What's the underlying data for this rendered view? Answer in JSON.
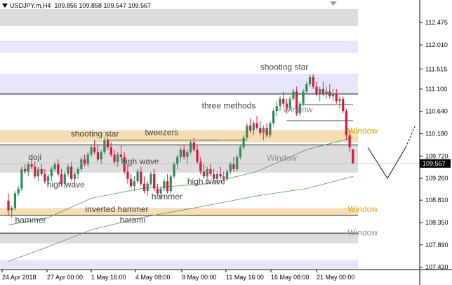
{
  "header": {
    "symbol": "USDJPY.m,H4",
    "ohlc": "109.856 109.858 109.547 109.567"
  },
  "current_price": "109.567",
  "colors": {
    "zone_gray": "#dcdcdc",
    "zone_lavender": "#e6e6fa",
    "zone_tan": "#f5deb3",
    "bull": "#2e8b57",
    "bear": "#dc143c",
    "ma": "#4d9a4d",
    "window_gray": "#8a9199",
    "window_tan": "#daa520"
  },
  "annotations": [
    {
      "text": "shooting star",
      "x": 19.0,
      "y": 111.5,
      "color": "#444444"
    },
    {
      "text": "three methods",
      "x": 14.6,
      "y": 110.7,
      "color": "#444444"
    },
    {
      "text": "Window",
      "x": 20.7,
      "y": 110.62,
      "color": "#8a9199"
    },
    {
      "text": "Window",
      "x": 25.6,
      "y": 110.18,
      "color": "#daa520"
    },
    {
      "text": "shooting star",
      "x": 4.7,
      "y": 110.12,
      "color": "#444444"
    },
    {
      "text": "tweezers",
      "x": 10.3,
      "y": 110.15,
      "color": "#444444"
    },
    {
      "text": "Window",
      "x": 19.5,
      "y": 109.62,
      "color": "#8a9199"
    },
    {
      "text": "doji",
      "x": 1.5,
      "y": 109.64,
      "color": "#444444"
    },
    {
      "text": "high wave",
      "x": 8.5,
      "y": 109.55,
      "color": "#444444"
    },
    {
      "text": "high wave",
      "x": 2.9,
      "y": 109.07,
      "color": "#444444"
    },
    {
      "text": "high wave",
      "x": 13.5,
      "y": 109.14,
      "color": "#444444"
    },
    {
      "text": "hammer",
      "x": 10.8,
      "y": 108.83,
      "color": "#444444"
    },
    {
      "text": "inverted hammer",
      "x": 5.8,
      "y": 108.57,
      "color": "#444444"
    },
    {
      "text": "hammer",
      "x": 0.5,
      "y": 108.34,
      "color": "#444444"
    },
    {
      "text": "harami",
      "x": 8.4,
      "y": 108.34,
      "color": "#444444"
    },
    {
      "text": "Window",
      "x": 25.6,
      "y": 108.57,
      "color": "#daa520"
    },
    {
      "text": "Window",
      "x": 25.6,
      "y": 108.08,
      "color": "#8a9199"
    }
  ],
  "chart_data": {
    "type": "candlestick",
    "title": "USDJPY.m,H4",
    "ylim": [
      107.38,
      112.85
    ],
    "y_ticks": [
      "112.475",
      "112.010",
      "111.515",
      "111.100",
      "110.640",
      "110.180",
      "109.720",
      "109.260",
      "108.810",
      "108.350",
      "107.890",
      "107.430"
    ],
    "x_ticks": [
      "24 Apr 2018",
      "27 Apr 00:00",
      "1 May 16:00",
      "4 May 08:00",
      "9 May 00:00",
      "11 May 16:00",
      "16 May 08:00",
      "21 May 00:00"
    ],
    "zones": [
      {
        "low": 112.4,
        "high": 112.75,
        "color": "gray"
      },
      {
        "low": 111.85,
        "high": 112.1,
        "color": "lavender"
      },
      {
        "low": 110.98,
        "high": 111.42,
        "color": "lavender"
      },
      {
        "low": 110.0,
        "high": 110.25,
        "color": "tan"
      },
      {
        "low": 109.38,
        "high": 109.95,
        "color": "gray"
      },
      {
        "low": 108.5,
        "high": 108.65,
        "color": "tan"
      },
      {
        "low": 107.92,
        "high": 108.13,
        "color": "gray"
      },
      {
        "low": 107.4,
        "high": 107.58,
        "color": "lavender"
      }
    ],
    "series": [
      {
        "name": "USDJPY.m",
        "values": [
          [
            108.8,
            108.95,
            108.5,
            108.6
          ],
          [
            108.6,
            108.7,
            108.45,
            108.65
          ],
          [
            108.65,
            109.0,
            108.6,
            108.95
          ],
          [
            108.95,
            109.1,
            108.9,
            109.05
          ],
          [
            109.05,
            109.5,
            109.0,
            109.45
          ],
          [
            109.45,
            109.55,
            109.35,
            109.4
          ],
          [
            109.4,
            109.6,
            109.3,
            109.55
          ],
          [
            109.55,
            109.65,
            109.45,
            109.5
          ],
          [
            109.5,
            109.6,
            109.25,
            109.3
          ],
          [
            109.3,
            109.5,
            109.2,
            109.45
          ],
          [
            109.45,
            109.55,
            109.3,
            109.35
          ],
          [
            109.35,
            109.45,
            109.15,
            109.2
          ],
          [
            109.2,
            109.35,
            109.1,
            109.3
          ],
          [
            109.3,
            109.5,
            109.2,
            109.45
          ],
          [
            109.45,
            109.6,
            109.4,
            109.55
          ],
          [
            109.55,
            109.65,
            109.3,
            109.35
          ],
          [
            109.35,
            109.45,
            109.1,
            109.15
          ],
          [
            109.15,
            109.4,
            109.05,
            109.35
          ],
          [
            109.35,
            109.55,
            109.3,
            109.5
          ],
          [
            109.5,
            109.6,
            109.2,
            109.25
          ],
          [
            109.25,
            109.4,
            109.15,
            109.35
          ],
          [
            109.35,
            109.5,
            109.25,
            109.45
          ],
          [
            109.45,
            109.7,
            109.4,
            109.65
          ],
          [
            109.65,
            109.75,
            109.5,
            109.55
          ],
          [
            109.55,
            109.8,
            109.5,
            109.75
          ],
          [
            109.75,
            109.95,
            109.7,
            109.9
          ],
          [
            109.9,
            110.05,
            109.75,
            109.8
          ],
          [
            109.8,
            109.95,
            109.6,
            109.65
          ],
          [
            109.65,
            109.85,
            109.55,
            109.8
          ],
          [
            109.8,
            110.1,
            109.75,
            110.05
          ],
          [
            110.05,
            110.1,
            109.85,
            109.9
          ],
          [
            109.9,
            110.0,
            109.7,
            109.75
          ],
          [
            109.75,
            109.85,
            109.55,
            109.6
          ],
          [
            109.6,
            109.8,
            109.5,
            109.75
          ],
          [
            109.75,
            109.95,
            109.65,
            109.7
          ],
          [
            109.7,
            109.8,
            109.35,
            109.4
          ],
          [
            109.4,
            109.55,
            109.15,
            109.25
          ],
          [
            109.25,
            109.35,
            109.05,
            109.1
          ],
          [
            109.1,
            109.3,
            109.0,
            109.2
          ],
          [
            109.2,
            109.45,
            109.15,
            109.4
          ],
          [
            109.4,
            109.5,
            109.1,
            109.15
          ],
          [
            109.15,
            109.3,
            108.95,
            109.0
          ],
          [
            109.0,
            109.2,
            108.9,
            109.15
          ],
          [
            109.15,
            109.4,
            109.1,
            109.35
          ],
          [
            109.35,
            109.45,
            109.0,
            109.05
          ],
          [
            109.05,
            109.15,
            108.9,
            108.95
          ],
          [
            108.95,
            109.1,
            108.85,
            109.05
          ],
          [
            109.05,
            109.25,
            109.0,
            109.2
          ],
          [
            109.2,
            109.35,
            108.95,
            109.0
          ],
          [
            109.0,
            109.35,
            108.95,
            109.3
          ],
          [
            109.3,
            109.6,
            109.25,
            109.55
          ],
          [
            109.55,
            109.75,
            109.45,
            109.7
          ],
          [
            109.7,
            109.9,
            109.6,
            109.85
          ],
          [
            109.85,
            109.95,
            109.65,
            109.7
          ],
          [
            109.7,
            109.85,
            109.55,
            109.8
          ],
          [
            109.8,
            110.05,
            109.75,
            110.0
          ],
          [
            110.0,
            110.1,
            109.8,
            109.85
          ],
          [
            109.85,
            109.95,
            109.55,
            109.6
          ],
          [
            109.6,
            109.7,
            109.35,
            109.4
          ],
          [
            109.4,
            109.55,
            109.25,
            109.3
          ],
          [
            109.3,
            109.5,
            109.2,
            109.45
          ],
          [
            109.45,
            109.55,
            109.3,
            109.35
          ],
          [
            109.35,
            109.45,
            109.2,
            109.25
          ],
          [
            109.25,
            109.4,
            109.15,
            109.35
          ],
          [
            109.35,
            109.5,
            109.25,
            109.3
          ],
          [
            109.3,
            109.4,
            109.2,
            109.25
          ],
          [
            109.25,
            109.45,
            109.2,
            109.4
          ],
          [
            109.4,
            109.6,
            109.35,
            109.55
          ],
          [
            109.55,
            109.7,
            109.4,
            109.45
          ],
          [
            109.45,
            109.75,
            109.4,
            109.7
          ],
          [
            109.7,
            109.95,
            109.65,
            109.9
          ],
          [
            109.9,
            110.15,
            109.85,
            110.1
          ],
          [
            110.1,
            110.4,
            110.05,
            110.35
          ],
          [
            110.35,
            110.5,
            110.2,
            110.25
          ],
          [
            110.25,
            110.45,
            110.15,
            110.4
          ],
          [
            110.4,
            110.55,
            110.25,
            110.3
          ],
          [
            110.3,
            110.45,
            110.15,
            110.2
          ],
          [
            110.2,
            110.35,
            110.05,
            110.3
          ],
          [
            110.3,
            110.4,
            110.1,
            110.15
          ],
          [
            110.15,
            110.45,
            110.1,
            110.4
          ],
          [
            110.4,
            110.7,
            110.35,
            110.65
          ],
          [
            110.65,
            110.85,
            110.55,
            110.75
          ],
          [
            110.75,
            110.95,
            110.65,
            110.9
          ],
          [
            110.9,
            111.05,
            110.75,
            110.8
          ],
          [
            110.8,
            110.9,
            110.6,
            110.7
          ],
          [
            110.7,
            110.95,
            110.65,
            110.9
          ],
          [
            110.9,
            111.1,
            110.85,
            111.05
          ],
          [
            111.05,
            111.15,
            110.55,
            110.6
          ],
          [
            110.6,
            110.85,
            110.55,
            110.8
          ],
          [
            110.8,
            111.1,
            110.75,
            111.05
          ],
          [
            111.05,
            111.25,
            111.0,
            111.2
          ],
          [
            111.2,
            111.4,
            111.15,
            111.35
          ],
          [
            111.35,
            111.4,
            111.1,
            111.15
          ],
          [
            111.15,
            111.25,
            110.95,
            111.0
          ],
          [
            111.0,
            111.15,
            110.85,
            111.1
          ],
          [
            111.1,
            111.25,
            110.95,
            111.0
          ],
          [
            111.0,
            111.15,
            110.9,
            111.05
          ],
          [
            111.05,
            111.2,
            110.9,
            110.95
          ],
          [
            110.95,
            111.1,
            110.85,
            111.0
          ],
          [
            111.0,
            111.1,
            110.8,
            110.85
          ],
          [
            110.85,
            110.95,
            110.7,
            110.9
          ],
          [
            110.9,
            110.95,
            110.6,
            110.65
          ],
          [
            110.65,
            110.7,
            110.05,
            110.15
          ],
          [
            110.15,
            110.25,
            109.8,
            109.9
          ],
          [
            109.86,
            109.86,
            109.55,
            109.57
          ]
        ]
      }
    ],
    "moving_averages": [
      {
        "name": "MA fast",
        "points": [
          [
            108.3,
            0
          ],
          [
            108.45,
            12
          ],
          [
            108.85,
            25
          ],
          [
            109.05,
            40
          ],
          [
            109.15,
            60
          ],
          [
            109.4,
            75
          ],
          [
            109.85,
            90
          ],
          [
            110.1,
            104
          ]
        ]
      },
      {
        "name": "MA slow",
        "points": [
          [
            107.55,
            0
          ],
          [
            107.85,
            12
          ],
          [
            108.2,
            25
          ],
          [
            108.45,
            40
          ],
          [
            108.7,
            60
          ],
          [
            108.9,
            75
          ],
          [
            109.05,
            90
          ],
          [
            109.3,
            104
          ]
        ]
      }
    ]
  }
}
